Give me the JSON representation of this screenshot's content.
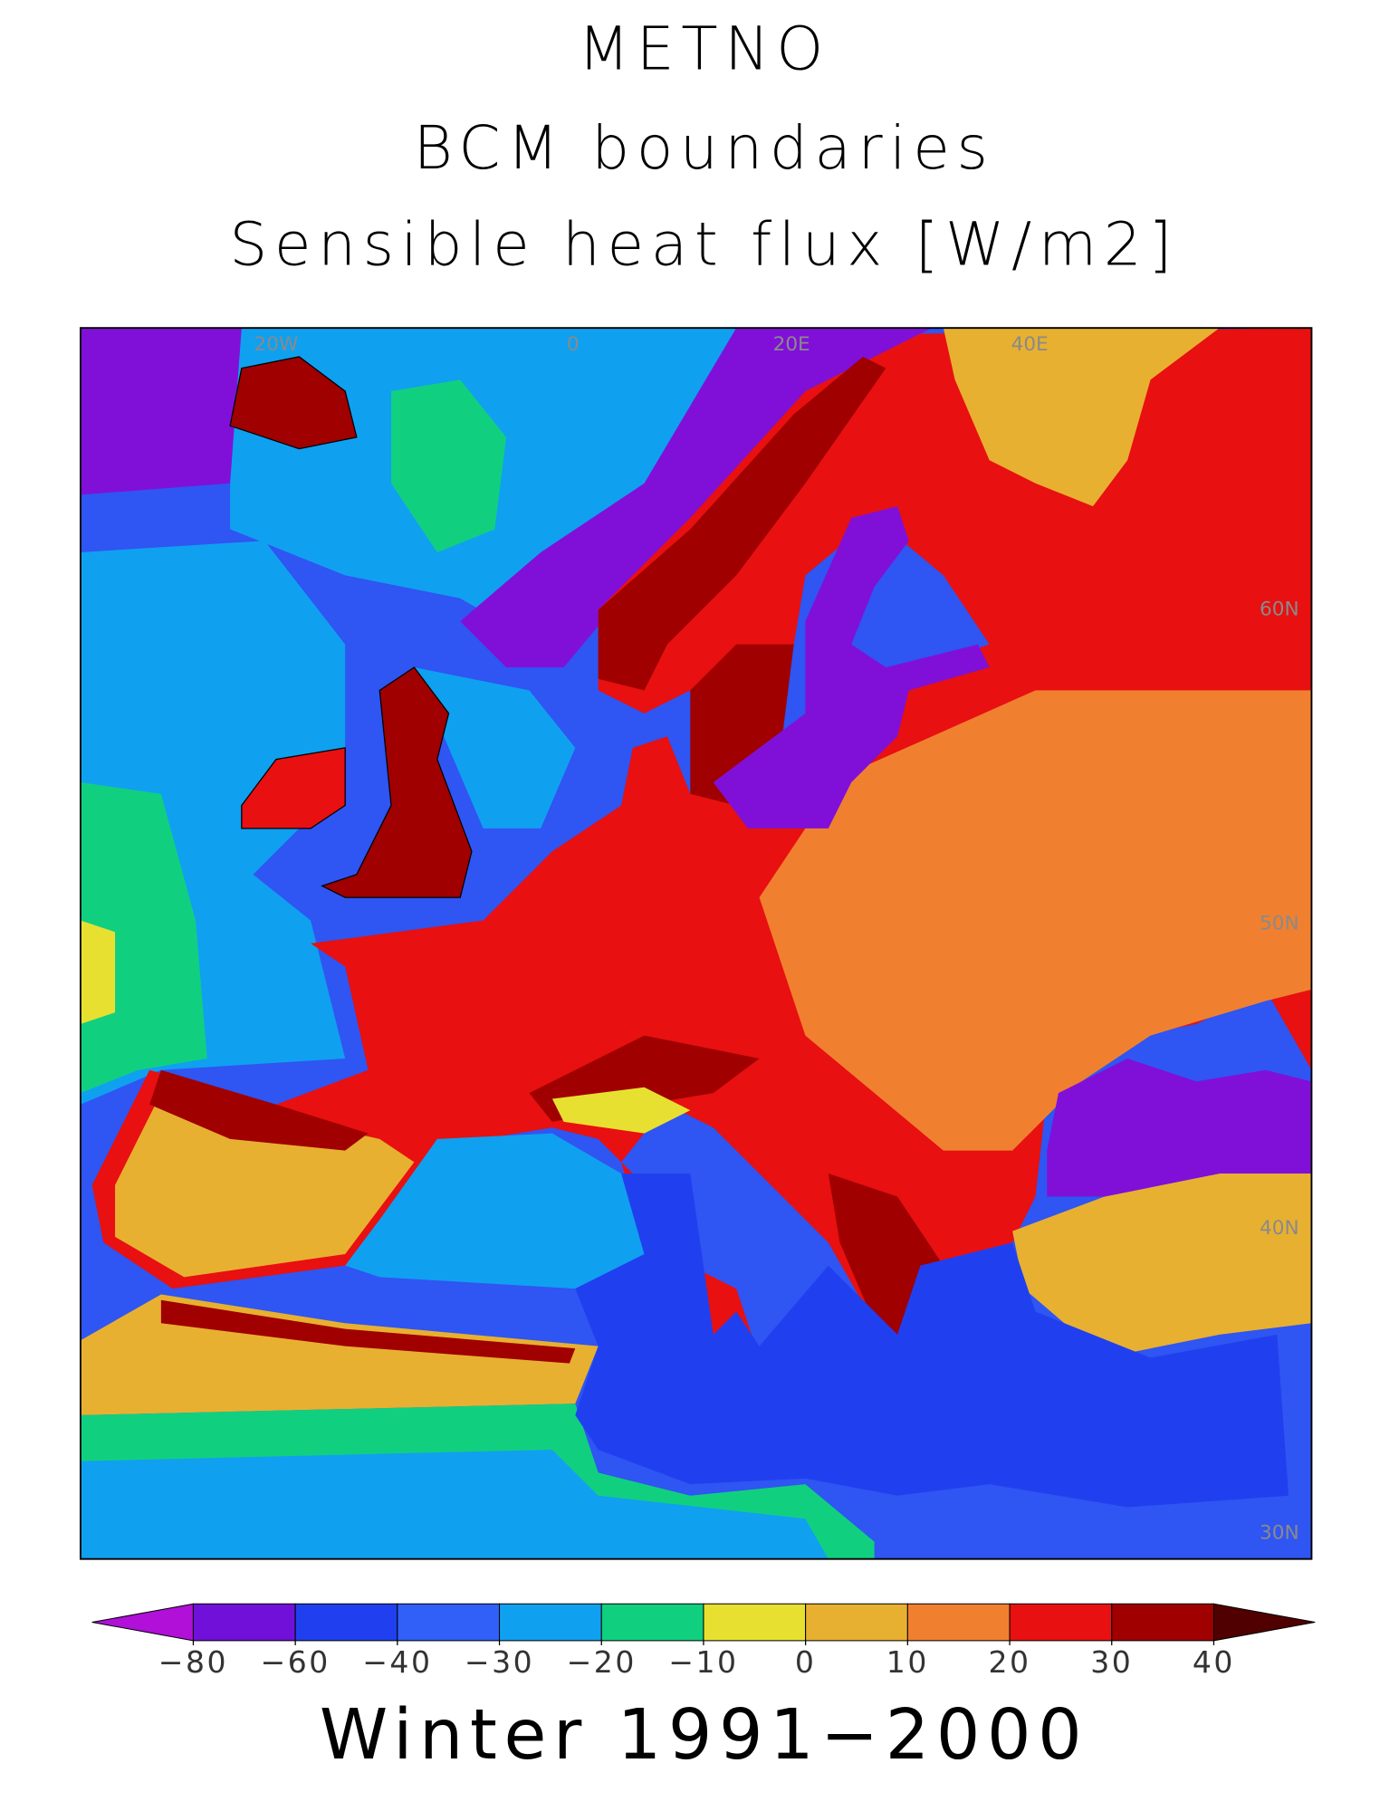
{
  "header": {
    "title": [
      "METNO",
      "BCM boundaries",
      "Sensible heat flux [W/m2]"
    ]
  },
  "map": {
    "lon_labels": [
      "20W",
      "0",
      "20E",
      "40E"
    ],
    "lat_labels": [
      "60N",
      "50N",
      "40N",
      "30N"
    ]
  },
  "colorbar": {
    "colors": [
      "#b010d8",
      "#7010d8",
      "#2040f0",
      "#3060f8",
      "#10a0f0",
      "#10d080",
      "#e8e030",
      "#e8b030",
      "#f08030",
      "#e81010",
      "#a00000",
      "#500000"
    ],
    "ticks": [
      {
        "value": -80,
        "label": "−80"
      },
      {
        "value": -60,
        "label": "−60"
      },
      {
        "value": -40,
        "label": "−40"
      },
      {
        "value": -30,
        "label": "−30"
      },
      {
        "value": -20,
        "label": "−20"
      },
      {
        "value": -10,
        "label": "−10"
      },
      0,
      10,
      20,
      30,
      40
    ]
  },
  "footer": "Winter 1991−2000"
}
